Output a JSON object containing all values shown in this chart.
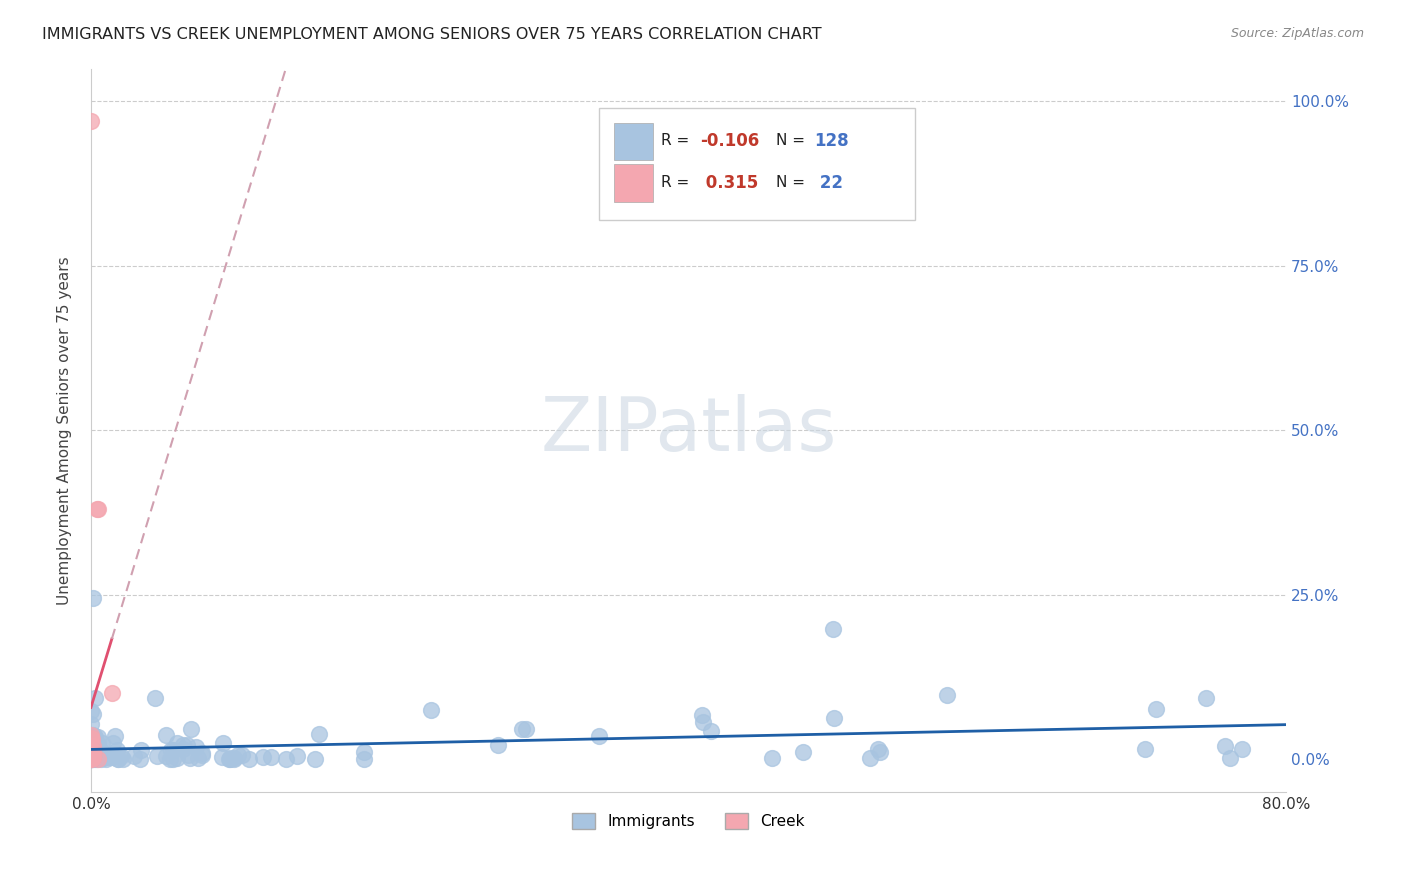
{
  "title": "IMMIGRANTS VS CREEK UNEMPLOYMENT AMONG SENIORS OVER 75 YEARS CORRELATION CHART",
  "source": "Source: ZipAtlas.com",
  "ylabel": "Unemployment Among Seniors over 75 years",
  "watermark": "ZIPatlas",
  "immigrants_R": -0.106,
  "immigrants_N": 128,
  "creek_R": 0.315,
  "creek_N": 22,
  "immigrants_color": "#a8c4e0",
  "creek_color": "#f4a7b0",
  "immigrants_line_color": "#1f5fa6",
  "creek_line_color": "#e05070",
  "creek_line_dash_color": "#d0a0b0",
  "xlim": [
    0,
    0.8
  ],
  "ylim": [
    -0.05,
    1.05
  ],
  "right_ytick_vals": [
    0.0,
    0.25,
    0.5,
    0.75,
    1.0
  ],
  "right_ytick_labels": [
    "0.0%",
    "25.0%",
    "50.0%",
    "75.0%",
    "100.0%"
  ],
  "xtick_vals": [
    0.0,
    0.2,
    0.4,
    0.6,
    0.8
  ],
  "xtick_labels": [
    "0.0%",
    "",
    "",
    "",
    "80.0%"
  ]
}
